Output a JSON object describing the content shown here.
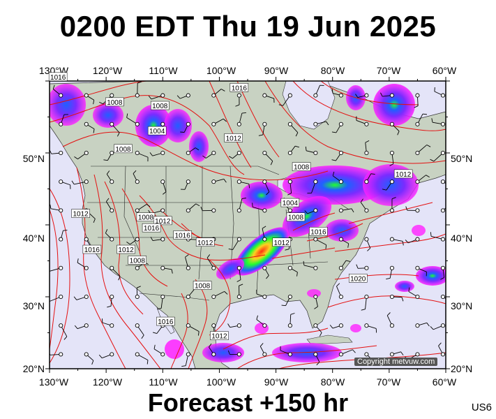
{
  "title": "0200 EDT Thu 19 Jun 2025",
  "footer": "Forecast +150 hr",
  "region_code": "US6",
  "copyright": "Copyright metvuw.com",
  "map": {
    "lon_labels": [
      "130°W",
      "120°W",
      "110°W",
      "100°W",
      "90°W",
      "80°W",
      "70°W",
      "60°W"
    ],
    "lat_labels_left": [
      "50°N",
      "40°N",
      "30°N",
      "20°N"
    ],
    "lat_labels_right": [
      "50°N",
      "40°N",
      "30°N",
      "20°N"
    ],
    "isobars": [
      {
        "value": "1016",
        "lon": -128.5,
        "lat": 60.5
      },
      {
        "value": "1008",
        "lon": -118.5,
        "lat": 57.0
      },
      {
        "value": "1008",
        "lon": -110.5,
        "lat": 56.5
      },
      {
        "value": "1004",
        "lon": -111.0,
        "lat": 53.0
      },
      {
        "value": "1008",
        "lon": -117.0,
        "lat": 50.5
      },
      {
        "value": "1016",
        "lon": -96.5,
        "lat": 59.0
      },
      {
        "value": "1012",
        "lon": -97.5,
        "lat": 52.0
      },
      {
        "value": "1008",
        "lon": -85.5,
        "lat": 48.0
      },
      {
        "value": "1012",
        "lon": -67.5,
        "lat": 47.0
      },
      {
        "value": "1004",
        "lon": -87.5,
        "lat": 43.0
      },
      {
        "value": "1008",
        "lon": -86.5,
        "lat": 41.0
      },
      {
        "value": "1012",
        "lon": -124.5,
        "lat": 41.5
      },
      {
        "value": "1008",
        "lon": -113.0,
        "lat": 41.0
      },
      {
        "value": "1012",
        "lon": -110.0,
        "lat": 40.5
      },
      {
        "value": "1016",
        "lon": -112.0,
        "lat": 39.5
      },
      {
        "value": "1016",
        "lon": -106.5,
        "lat": 38.5
      },
      {
        "value": "1012",
        "lon": -116.5,
        "lat": 36.5
      },
      {
        "value": "1016",
        "lon": -122.5,
        "lat": 36.5
      },
      {
        "value": "1008",
        "lon": -114.5,
        "lat": 35.0
      },
      {
        "value": "1012",
        "lon": -102.5,
        "lat": 37.5
      },
      {
        "value": "1016",
        "lon": -82.5,
        "lat": 39.0
      },
      {
        "value": "1012",
        "lon": -89.0,
        "lat": 37.5
      },
      {
        "value": "1020",
        "lon": -75.5,
        "lat": 32.5
      },
      {
        "value": "1008",
        "lon": -103.0,
        "lat": 31.5
      },
      {
        "value": "1016",
        "lon": -109.5,
        "lat": 26.5
      },
      {
        "value": "1012",
        "lon": -100.0,
        "lat": 24.5
      }
    ],
    "colors": {
      "ocean": "#e4e4f8",
      "land": "#c8d2c2",
      "isobar": "#e41010",
      "precip_light": "#ff20ff",
      "precip_mid": "#7a2cff",
      "precip_heavy": "#2060ff",
      "precip_core": "#20ff30"
    }
  }
}
